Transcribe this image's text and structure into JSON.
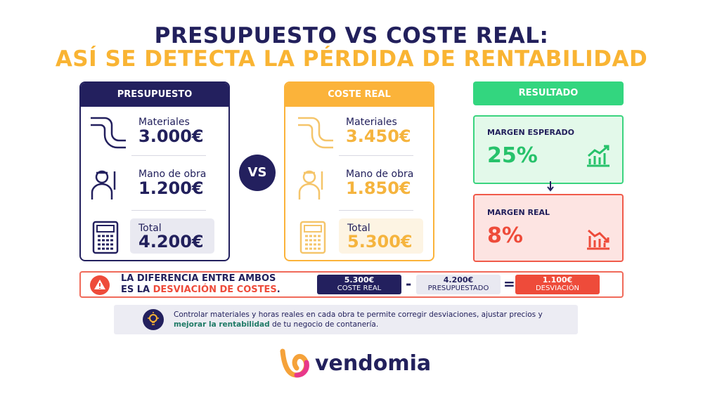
{
  "title": {
    "line1": "PRESUPUESTO VS COSTE REAL:",
    "line2": "ASÍ SE DETECTA LA PÉRDIDA DE RENTABILIDAD"
  },
  "budget": {
    "header": "PRESUPUESTO",
    "items": [
      {
        "label": "Materiales",
        "value": "3.000€"
      },
      {
        "label": "Mano de obra",
        "value": "1.200€"
      },
      {
        "label": "Total",
        "value": "4.200€"
      }
    ]
  },
  "vs": "VS",
  "actual": {
    "header": "COSTE REAL",
    "items": [
      {
        "label": "Materiales",
        "value": "3.450€"
      },
      {
        "label": "Mano de obra",
        "value": "1.850€"
      },
      {
        "label": "Total",
        "value": "5.300€"
      }
    ]
  },
  "result": {
    "header": "RESULTADO",
    "expected": {
      "label": "MARGEN ESPERADO",
      "value": "25%"
    },
    "real": {
      "label": "MARGEN REAL",
      "value": "8%"
    }
  },
  "banner": {
    "line1": "LA DIFERENCIA ENTRE AMBOS",
    "line2_prefix": "ES LA ",
    "line2_highlight": "DESVIACIÓN DE COSTES",
    "line2_suffix": ".",
    "formula": [
      {
        "value": "5.300€",
        "label": "COSTE REAL"
      },
      {
        "value": "4.200€",
        "label": "PRESUPUESTADO"
      },
      {
        "value": "1.100€",
        "label": "DESVIACIÓN"
      }
    ],
    "operators": [
      "-",
      "="
    ]
  },
  "tip": {
    "prefix": "Controlar materiales y horas reales en cada obra te permite corregir desviaciones, ajustar precios y ",
    "bold": "mejorar la rentabilidad",
    "suffix": " de tu negocio de contanería."
  },
  "logo": "vendomia"
}
